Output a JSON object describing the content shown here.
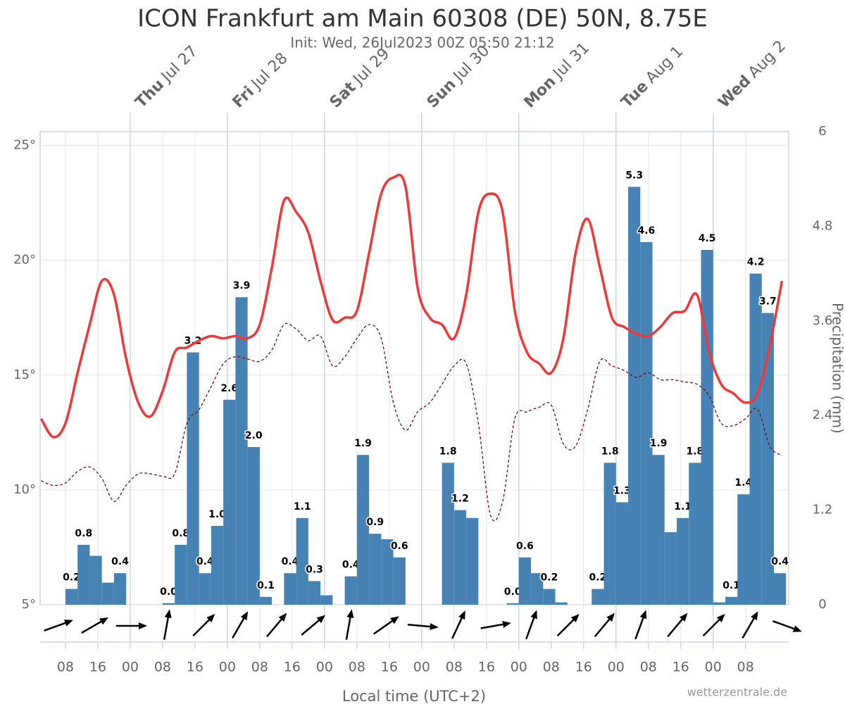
{
  "chart_data": {
    "type": "meteogram",
    "title": "ICON Frankfurt am Main 60308 (DE) 50N, 8.75E",
    "subtitle": "Init: Wed, 26Jul2023 00Z 05:50 21:12",
    "x_label": "Local time (UTC+2)",
    "source": "wetterzentrale.de",
    "y2_label": "Precipitation (mm)",
    "xlim": [
      1.75,
      186.65
    ],
    "xticks": [
      {
        "value": 8,
        "label": "08"
      },
      16,
      {
        "value": 24,
        "label": "00"
      },
      {
        "value": 32,
        "label": "08"
      },
      {
        "value": 40,
        "label": "16"
      },
      {
        "value": 48,
        "label": "00"
      },
      {
        "value": 56,
        "label": "08"
      },
      {
        "value": 64,
        "label": "16"
      },
      {
        "value": 72,
        "label": "00"
      },
      {
        "value": 80,
        "label": "08"
      },
      {
        "value": 88,
        "label": "16"
      },
      {
        "value": 96,
        "label": "00"
      },
      {
        "value": 104,
        "label": "08"
      },
      {
        "value": 112,
        "label": "16"
      },
      {
        "value": 120,
        "label": "00"
      },
      {
        "value": 128,
        "label": "08"
      },
      {
        "value": 136,
        "label": "16"
      },
      {
        "value": 144,
        "label": "00"
      },
      {
        "value": 152,
        "label": "08"
      },
      {
        "value": 160,
        "label": "16"
      },
      {
        "value": 168,
        "label": "00"
      },
      {
        "value": 176,
        "label": "08"
      }
    ],
    "day_labels": [
      {
        "value": 24,
        "weekday": "Thu",
        "date": "Jul 27"
      },
      {
        "value": 48,
        "weekday": "Fri",
        "date": "Jul 28"
      },
      {
        "value": 72,
        "weekday": "Sat",
        "date": "Jul 29"
      },
      {
        "value": 96,
        "weekday": "Sun",
        "date": "Jul 30"
      },
      {
        "value": 120,
        "weekday": "Mon",
        "date": "Jul 31"
      },
      {
        "value": 144,
        "weekday": "Tue",
        "date": "Aug 1"
      },
      {
        "value": 168,
        "weekday": "Wed",
        "date": "Aug 2"
      }
    ],
    "ylim": [
      5,
      25.6
    ],
    "yticks": [
      {
        "value": 5,
        "label": "5°"
      },
      {
        "value": 10,
        "label": "10°"
      },
      {
        "value": 15,
        "label": "15°"
      },
      {
        "value": 20,
        "label": "20°"
      },
      {
        "value": 25,
        "label": "25°"
      }
    ],
    "y2lim": [
      0,
      6
    ],
    "y2ticks": [
      0,
      1.2,
      2.4,
      3.6,
      4.8,
      6
    ],
    "grid": true,
    "series": [
      {
        "type": "bar",
        "axis": "y2",
        "color": "#4682b4",
        "bar_width": 3,
        "x": [
          8,
          11,
          14,
          17,
          20,
          32,
          35,
          38,
          41,
          44,
          47,
          50,
          53,
          56,
          62,
          65,
          68,
          71,
          77,
          80,
          83,
          86,
          89,
          101,
          104,
          107,
          117,
          120,
          123,
          126,
          129,
          138,
          141,
          144,
          147,
          150,
          153,
          156,
          159,
          162,
          165,
          168,
          171,
          174,
          177,
          180,
          183
        ],
        "values": [
          0.2,
          0.76,
          0.62,
          0.28,
          0.4,
          0.02,
          0.76,
          3.2,
          0.4,
          1.0,
          2.6,
          3.9,
          2.0,
          0.1,
          0.4,
          1.1,
          0.3,
          0.12,
          0.36,
          1.9,
          0.9,
          0.83,
          0.6,
          1.8,
          1.2,
          1.1,
          0.02,
          0.6,
          0.4,
          0.2,
          0.03,
          0.2,
          1.8,
          1.3,
          5.3,
          4.6,
          1.9,
          0.92,
          1.1,
          1.8,
          4.5,
          0.03,
          0.1,
          1.4,
          4.2,
          3.7,
          0.4
        ],
        "value_labels": [
          "0.2",
          "0.8",
          null,
          null,
          "0.4",
          "0.0",
          "0.8",
          "3.2",
          "0.4",
          "1.0",
          "2.6",
          "3.9",
          "2.0",
          "0.1",
          "0.4",
          "1.1",
          "0.3",
          null,
          "0.4",
          "1.9",
          "0.9",
          null,
          "0.6",
          "1.8",
          "1.2",
          null,
          "0.0",
          "0.6",
          null,
          "0.2",
          null,
          "0.2",
          "1.8",
          "1.3",
          "5.3",
          "4.6",
          "1.9",
          null,
          "1.1",
          "1.8",
          "4.5",
          null,
          "0.1",
          "1.4",
          "4.2",
          "3.7",
          "0.4"
        ]
      },
      {
        "type": "line",
        "axis": "y",
        "color": "#7a0a0a",
        "dashed": true,
        "x": [
          2,
          5,
          8,
          11,
          14,
          17,
          20,
          23,
          26,
          29,
          32,
          35,
          38,
          41,
          44,
          47,
          50,
          53,
          56,
          59,
          62,
          65,
          68,
          71,
          74,
          77,
          80,
          83,
          86,
          89,
          92,
          95,
          98,
          101,
          104,
          107,
          110,
          113,
          116,
          119,
          122,
          125,
          128,
          131,
          134,
          137,
          140,
          143,
          146,
          149,
          152,
          155,
          158,
          161,
          164,
          167,
          170,
          173,
          176,
          179,
          182,
          185
        ],
        "values": [
          10.4,
          10.2,
          10.3,
          10.8,
          11.0,
          10.5,
          9.5,
          10.2,
          10.7,
          10.7,
          10.6,
          10.7,
          12.9,
          13.5,
          14.5,
          15.5,
          15.8,
          15.7,
          15.6,
          16.1,
          17.2,
          17.0,
          16.5,
          16.7,
          15.4,
          15.8,
          16.6,
          17.2,
          16.6,
          13.8,
          12.6,
          13.4,
          13.8,
          14.6,
          15.4,
          15.5,
          12.9,
          8.9,
          9.5,
          13.1,
          13.4,
          13.6,
          13.7,
          12.0,
          11.9,
          13.5,
          15.6,
          15.4,
          15.2,
          14.9,
          15.1,
          14.8,
          14.8,
          14.7,
          14.6,
          14.1,
          12.9,
          12.8,
          13.1,
          13.5,
          11.9,
          11.5
        ]
      },
      {
        "type": "line",
        "axis": "y",
        "color": "#f03838",
        "dashed": false,
        "x": [
          2,
          5,
          8,
          11,
          14,
          17,
          20,
          23,
          26,
          29,
          32,
          35,
          38,
          41,
          44,
          47,
          50,
          53,
          56,
          59,
          62,
          65,
          68,
          71,
          74,
          77,
          80,
          83,
          86,
          89,
          92,
          95,
          98,
          101,
          104,
          107,
          110,
          113,
          116,
          119,
          122,
          125,
          128,
          131,
          134,
          137,
          140,
          143,
          146,
          149,
          152,
          155,
          158,
          161,
          164,
          167,
          170,
          173,
          176,
          179,
          182,
          185
        ],
        "values": [
          13.1,
          12.3,
          12.9,
          15.1,
          17.2,
          19.1,
          18.5,
          15.7,
          13.8,
          13.2,
          14.3,
          16.0,
          16.2,
          16.5,
          16.7,
          16.6,
          16.7,
          16.6,
          17.2,
          19.7,
          22.6,
          22.1,
          21.2,
          19.1,
          17.4,
          17.5,
          17.8,
          20.3,
          22.9,
          23.6,
          23.2,
          18.8,
          17.5,
          17.2,
          16.6,
          18.5,
          22.1,
          22.9,
          22.1,
          17.8,
          16.0,
          15.5,
          15.1,
          16.6,
          20.3,
          21.8,
          19.7,
          17.5,
          17.1,
          16.8,
          16.7,
          17.1,
          17.7,
          17.8,
          18.5,
          16.0,
          14.6,
          14.2,
          13.8,
          14.2,
          16.3,
          19.1
        ]
      }
    ],
    "wind": {
      "x": [
        6,
        15,
        24,
        33,
        42,
        51,
        60,
        69,
        78,
        87,
        96,
        105,
        114,
        123,
        132,
        141,
        150,
        159,
        168,
        177,
        186
      ],
      "direction": [
        70,
        60,
        90,
        10,
        45,
        30,
        40,
        50,
        10,
        55,
        95,
        25,
        80,
        20,
        45,
        40,
        20,
        40,
        45,
        30,
        110
      ]
    }
  }
}
